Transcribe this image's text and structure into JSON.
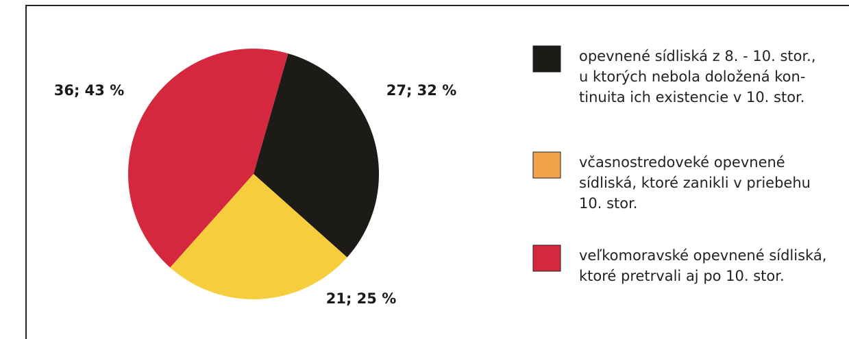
{
  "chart_data": {
    "type": "pie",
    "categories": [
      "opevnené sídliská z 8. - 10. stor.,\nu ktorých nebola doložená kon-\ntinuita ich existencie v 10. stor.",
      "včasnostredoveké opevnené\nsídliská, ktoré zanikli v priebehu\n10. stor.",
      "veľkomoravské opevnené sídliská,\nktoré pretrvali aj po 10. stor."
    ],
    "values": [
      27,
      21,
      36
    ],
    "value_labels": [
      "27; 32 %",
      "21; 25 %",
      "36; 43 %"
    ],
    "colors": [
      "#1d1b18",
      "#f6cd3c",
      "#d5283e"
    ],
    "legend_colors": [
      "#1d1b18",
      "#f3a24c",
      "#d5283e"
    ],
    "legend": "right"
  }
}
